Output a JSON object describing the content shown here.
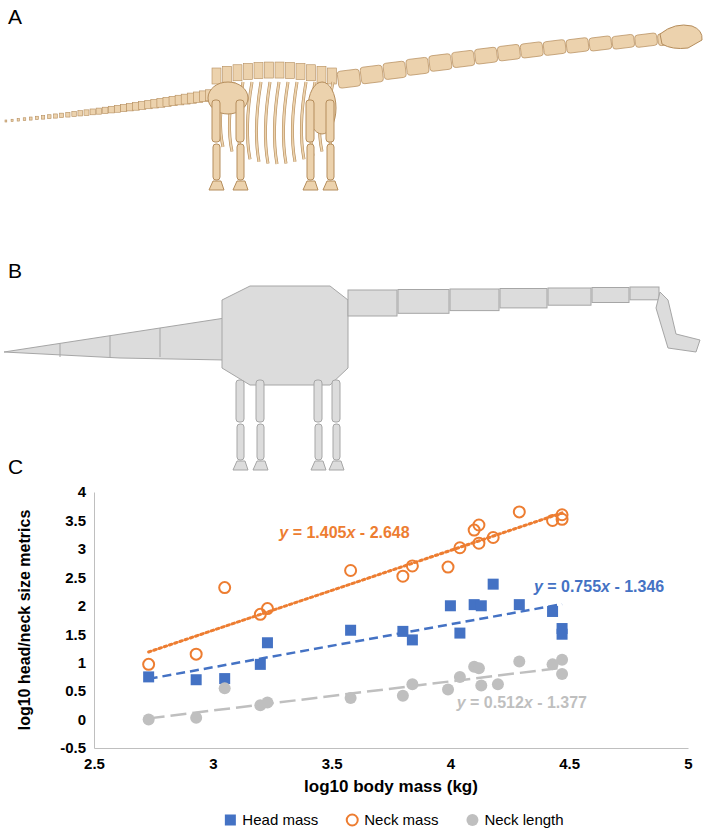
{
  "figure": {
    "panel_labels": [
      "A",
      "B",
      "C"
    ]
  },
  "chart_data": {
    "type": "scatter",
    "x_label": "log10 body mass (kg)",
    "y_label": "log10 head/neck size metrics",
    "xlim": [
      2.5,
      5
    ],
    "xticks": [
      2.5,
      3,
      3.5,
      4,
      4.5,
      5
    ],
    "ylim": [
      -0.5,
      4
    ],
    "yticks": [
      -0.5,
      0,
      0.5,
      1,
      1.5,
      2,
      2.5,
      3,
      3.5,
      4
    ],
    "grid": false,
    "legend": "bottom",
    "series": [
      {
        "name": "Head mass",
        "color": "#4472c4",
        "marker": "square",
        "line_style": "dashed",
        "x": [
          2.73,
          2.93,
          3.05,
          3.2,
          3.23,
          3.58,
          3.8,
          3.84,
          4.0,
          4.04,
          4.1,
          4.13,
          4.18,
          4.29,
          4.43,
          4.47,
          4.47
        ],
        "values": [
          0.75,
          0.7,
          0.72,
          0.97,
          1.35,
          1.57,
          1.55,
          1.4,
          2.0,
          1.52,
          2.02,
          2.0,
          2.38,
          2.02,
          1.9,
          1.6,
          1.5
        ],
        "trend": {
          "slope": 0.755,
          "intercept": -1.346,
          "label": "y = 0.755x - 1.346"
        }
      },
      {
        "name": "Neck mass",
        "color": "#ed7d31",
        "marker": "circle-open",
        "line_style": "dotted",
        "x": [
          2.73,
          2.93,
          3.05,
          3.2,
          3.23,
          3.58,
          3.8,
          3.84,
          3.99,
          4.04,
          4.1,
          4.12,
          4.12,
          4.18,
          4.29,
          4.43,
          4.47,
          4.47
        ],
        "values": [
          0.97,
          1.15,
          2.32,
          1.85,
          1.95,
          2.62,
          2.52,
          2.7,
          2.68,
          3.02,
          3.33,
          3.42,
          3.1,
          3.2,
          3.65,
          3.5,
          3.6,
          3.52
        ],
        "trend": {
          "slope": 1.405,
          "intercept": -2.648,
          "label": "y = 1.405x - 2.648"
        }
      },
      {
        "name": "Neck length",
        "color": "#bfbfbf",
        "marker": "circle",
        "line_style": "long-dashed",
        "x": [
          2.73,
          2.93,
          3.05,
          3.2,
          3.23,
          3.58,
          3.8,
          3.84,
          3.99,
          4.04,
          4.1,
          4.12,
          4.13,
          4.2,
          4.29,
          4.43,
          4.47,
          4.47
        ],
        "values": [
          0.0,
          0.03,
          0.55,
          0.25,
          0.3,
          0.38,
          0.42,
          0.62,
          0.53,
          0.75,
          0.93,
          0.9,
          0.6,
          0.62,
          1.02,
          0.97,
          1.05,
          0.8
        ],
        "trend": {
          "slope": 0.512,
          "intercept": -1.377,
          "label": "y = 0.512x - 1.377"
        }
      }
    ]
  }
}
